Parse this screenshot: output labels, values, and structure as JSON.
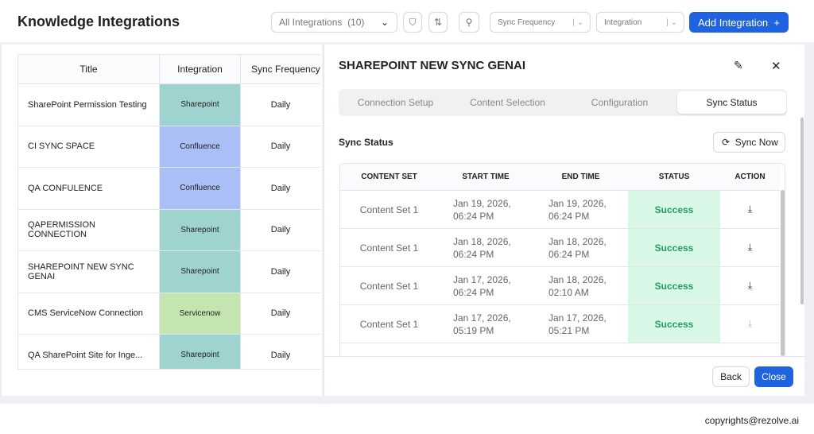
{
  "header": {
    "title": "Knowledge Integrations",
    "filter": "All Integrations",
    "filter_count": "(10)",
    "sync_frequency": "Sync Frequency",
    "integration": "Integration",
    "add_button": "Add Integration"
  },
  "table": {
    "columns": [
      "Title",
      "Integration",
      "Sync Frequency"
    ],
    "rows": [
      [
        "SharePoint Permission Testing",
        "Sharepoint",
        "Daily"
      ],
      [
        "CI SYNC SPACE",
        "Confluence",
        "Daily"
      ],
      [
        "QA CONFULENCE",
        "Confluence",
        "Daily"
      ],
      [
        "QAPERMISSION CONNECTION",
        "Sharepoint",
        "Daily"
      ],
      [
        "SHAREPOINT NEW SYNC GENAI",
        "Sharepoint",
        "Daily"
      ],
      [
        "CMS ServiceNow Connection",
        "Servicenow",
        "Daily"
      ],
      [
        "QA SharePoint Site for Inge...",
        "Sharepoint",
        "Daily"
      ]
    ]
  },
  "panel": {
    "title": "SHAREPOINT NEW SYNC GENAI",
    "tabs": [
      "Connection Setup",
      "Content Selection",
      "Configuration",
      "Sync Status"
    ],
    "active_tab": 3,
    "section_title": "Sync Status",
    "sync_button": "Sync Now",
    "columns": [
      "CONTENT SET",
      "START TIME",
      "END TIME",
      "STATUS",
      "ACTION"
    ],
    "rows": [
      [
        "Content Set 1",
        "Jan 19, 2026, 06:24 PM",
        "Jan 19, 2026, 06:24 PM",
        "Success"
      ],
      [
        "Content Set 1",
        "Jan 18, 2026, 06:24 PM",
        "Jan 18, 2026, 06:24 PM",
        "Success"
      ],
      [
        "Content Set 1",
        "Jan 17, 2026, 06:24 PM",
        "Jan 18, 2026, 02:10 AM",
        "Success"
      ],
      [
        "Content Set 1",
        "Jan 17, 2026, 05:19 PM",
        "Jan 17, 2026, 05:21 PM",
        "Success"
      ]
    ],
    "back_button": "Back",
    "close_button": "Close"
  },
  "footer": {
    "copyright": "copyrights@rezolve.ai"
  }
}
